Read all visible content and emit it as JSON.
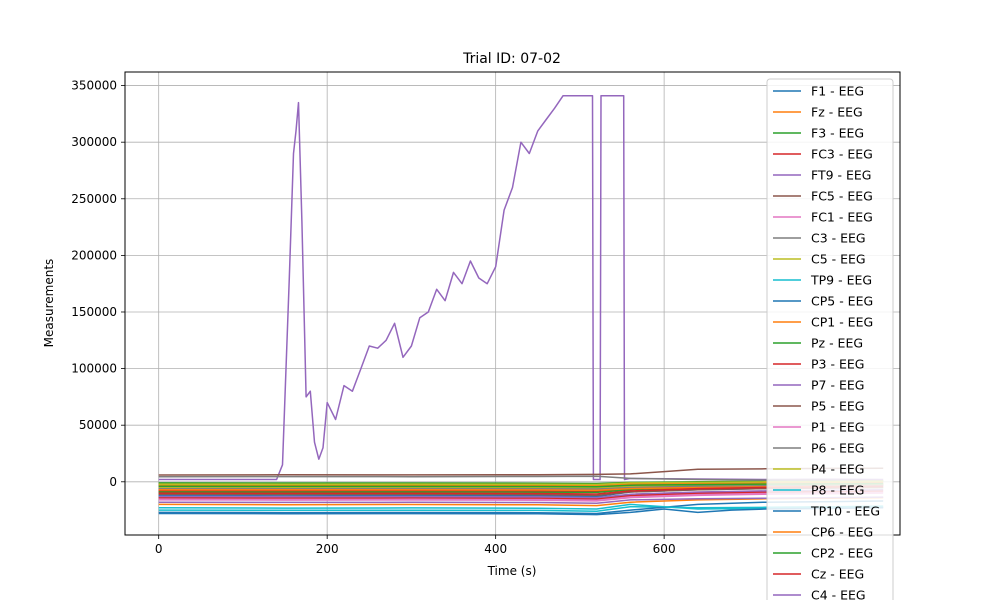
{
  "chart_data": {
    "type": "line",
    "title": "Trial ID: 07-02",
    "xlabel": "Time (s)",
    "ylabel": "Measurements",
    "xlim": [
      -40,
      880
    ],
    "ylim": [
      -47000,
      362000
    ],
    "x_ticks": [
      0,
      200,
      400,
      600
    ],
    "y_ticks": [
      0,
      50000,
      100000,
      150000,
      200000,
      250000,
      300000,
      350000
    ],
    "x_tick_labels": [
      "0",
      "200",
      "400",
      "600"
    ],
    "y_tick_labels": [
      "0",
      "50000",
      "100000",
      "150000",
      "200000",
      "250000",
      "300000",
      "350000"
    ],
    "grid": true,
    "legend_position": "right",
    "series": [
      {
        "name": "F1 - EEG",
        "color": "#1f77b4",
        "x": [
          0,
          150,
          300,
          450,
          520,
          560,
          640,
          720,
          800,
          860
        ],
        "values": [
          -12000,
          -12500,
          -12200,
          -12400,
          -13000,
          -9000,
          -7000,
          -6000,
          -5500,
          -5000
        ]
      },
      {
        "name": "Fz - EEG",
        "color": "#ff7f0e",
        "x": [
          0,
          150,
          300,
          450,
          520,
          560,
          640,
          720,
          800,
          860
        ],
        "values": [
          -3000,
          -3200,
          -3100,
          -3300,
          -3500,
          -2000,
          -1500,
          -1200,
          -1000,
          -900
        ]
      },
      {
        "name": "F3 - EEG",
        "color": "#2ca02c",
        "x": [
          0,
          150,
          300,
          450,
          520,
          560,
          640,
          720,
          800,
          860
        ],
        "values": [
          -1000,
          -1100,
          -1050,
          -1200,
          -1500,
          -500,
          0,
          500,
          800,
          1000
        ]
      },
      {
        "name": "FC3 - EEG",
        "color": "#d62728",
        "x": [
          0,
          150,
          300,
          450,
          520,
          560,
          640,
          720,
          800,
          860
        ],
        "values": [
          -8000,
          -8200,
          -8100,
          -8300,
          -8500,
          -6000,
          -4000,
          -3000,
          -2500,
          -2000
        ]
      },
      {
        "name": "FT9 - EEG",
        "color": "#9467bd",
        "x": [
          0,
          140,
          147,
          155,
          160,
          163,
          166,
          170,
          175,
          180,
          185,
          190,
          195,
          200,
          210,
          220,
          230,
          240,
          250,
          260,
          270,
          280,
          290,
          300,
          310,
          320,
          330,
          340,
          350,
          360,
          370,
          380,
          390,
          400,
          410,
          420,
          430,
          440,
          450,
          460,
          470,
          480,
          500,
          515,
          516,
          524,
          525,
          530,
          552,
          553,
          560,
          640,
          720,
          800,
          860
        ],
        "values": [
          2000,
          2000,
          15000,
          180000,
          290000,
          310000,
          335000,
          230000,
          75000,
          80000,
          35000,
          20000,
          30000,
          70000,
          55000,
          85000,
          80000,
          100000,
          120000,
          118000,
          125000,
          140000,
          110000,
          120000,
          145000,
          150000,
          170000,
          160000,
          185000,
          175000,
          195000,
          180000,
          175000,
          190000,
          240000,
          260000,
          300000,
          290000,
          310000,
          320000,
          330000,
          341000,
          341000,
          341000,
          2000,
          2000,
          341000,
          341000,
          341000,
          2000,
          3000,
          2500,
          2000,
          2200,
          2000
        ]
      },
      {
        "name": "FC5 - EEG",
        "color": "#8c564b",
        "x": [
          0,
          150,
          300,
          450,
          520,
          560,
          600,
          640,
          720,
          800,
          860
        ],
        "values": [
          6000,
          6200,
          6100,
          6300,
          6500,
          7000,
          9000,
          11000,
          11500,
          11800,
          12000
        ]
      },
      {
        "name": "FC1 - EEG",
        "color": "#e377c2",
        "x": [
          0,
          150,
          300,
          450,
          520,
          560,
          640,
          720,
          800,
          860
        ],
        "values": [
          -15000,
          -15200,
          -15100,
          -15300,
          -16000,
          -13000,
          -11000,
          -10000,
          -9500,
          -9000
        ]
      },
      {
        "name": "C3 - EEG",
        "color": "#7f7f7f",
        "x": [
          0,
          150,
          300,
          450,
          520,
          560,
          640,
          720,
          800,
          860
        ],
        "values": [
          4500,
          4600,
          4500,
          4700,
          4900,
          3000,
          2000,
          1500,
          1200,
          1000
        ]
      },
      {
        "name": "C5 - EEG",
        "color": "#bcbd22",
        "x": [
          0,
          150,
          300,
          450,
          520,
          560,
          640,
          720,
          800,
          860
        ],
        "values": [
          -5000,
          -5100,
          -5050,
          -5200,
          -5400,
          -4000,
          -3000,
          -2500,
          -2200,
          -2000
        ]
      },
      {
        "name": "TP9 - EEG",
        "color": "#17becf",
        "x": [
          0,
          150,
          300,
          450,
          520,
          560,
          640,
          720,
          800,
          860
        ],
        "values": [
          -25000,
          -25200,
          -25100,
          -25300,
          -26000,
          -22000,
          -23000,
          -22500,
          -22000,
          -21500
        ]
      },
      {
        "name": "CP5 - EEG",
        "color": "#1f77b4",
        "x": [
          0,
          150,
          300,
          450,
          520,
          560,
          640,
          720,
          800,
          860
        ],
        "values": [
          -27000,
          -27200,
          -27100,
          -27300,
          -28000,
          -25000,
          -20000,
          -18000,
          -17500,
          -17000
        ]
      },
      {
        "name": "CP1 - EEG",
        "color": "#ff7f0e",
        "x": [
          0,
          150,
          300,
          450,
          520,
          560,
          640,
          720,
          800,
          860
        ],
        "values": [
          -20000,
          -20200,
          -20100,
          -20300,
          -21000,
          -18000,
          -16000,
          -15000,
          -14500,
          -14000
        ]
      },
      {
        "name": "Pz - EEG",
        "color": "#2ca02c",
        "x": [
          0,
          150,
          300,
          450,
          520,
          560,
          640,
          720,
          800,
          860
        ],
        "values": [
          -9000,
          -9100,
          -9050,
          -9200,
          -9400,
          -7000,
          -5000,
          -4000,
          -3500,
          -3000
        ]
      },
      {
        "name": "P3 - EEG",
        "color": "#d62728",
        "x": [
          0,
          150,
          300,
          450,
          520,
          560,
          640,
          720,
          800,
          860
        ],
        "values": [
          -14000,
          -14200,
          -14100,
          -14300,
          -15000,
          -12000,
          -10000,
          -9000,
          -8500,
          -8000
        ]
      },
      {
        "name": "P7 - EEG",
        "color": "#9467bd",
        "x": [
          0,
          150,
          300,
          450,
          520,
          560,
          640,
          720,
          800,
          860
        ],
        "values": [
          -18000,
          -18200,
          -18100,
          -18300,
          -19000,
          -16000,
          -15000,
          -14500,
          -14000,
          -13500
        ]
      },
      {
        "name": "P5 - EEG",
        "color": "#8c564b",
        "x": [
          0,
          150,
          300,
          450,
          520,
          560,
          640,
          720,
          800,
          860
        ],
        "values": [
          -11000,
          -11200,
          -11100,
          -11300,
          -12000,
          -9000,
          -7000,
          -6000,
          -5500,
          -5000
        ]
      },
      {
        "name": "P1 - EEG",
        "color": "#e377c2",
        "x": [
          0,
          150,
          300,
          450,
          520,
          560,
          640,
          720,
          800,
          860
        ],
        "values": [
          -16000,
          -16200,
          -16100,
          -16300,
          -17000,
          -14000,
          -12000,
          -11000,
          -10500,
          -10000
        ]
      },
      {
        "name": "P6 - EEG",
        "color": "#7f7f7f",
        "x": [
          0,
          150,
          300,
          450,
          520,
          560,
          640,
          720,
          800,
          860
        ],
        "values": [
          -6000,
          -6100,
          -6050,
          -6200,
          -6400,
          -5000,
          -4000,
          -3500,
          -3200,
          -3000
        ]
      },
      {
        "name": "P4 - EEG",
        "color": "#bcbd22",
        "x": [
          0,
          150,
          300,
          450,
          520,
          560,
          640,
          720,
          800,
          860
        ],
        "values": [
          -2000,
          -2100,
          -2050,
          -2200,
          -2400,
          -1000,
          -500,
          0,
          200,
          400
        ]
      },
      {
        "name": "P8 - EEG",
        "color": "#17becf",
        "x": [
          0,
          150,
          300,
          450,
          520,
          560,
          640,
          720,
          800,
          860
        ],
        "values": [
          -23000,
          -23200,
          -23100,
          -23300,
          -24000,
          -20000,
          -24000,
          -23500,
          -23000,
          -22500
        ]
      },
      {
        "name": "TP10 - EEG",
        "color": "#1f77b4",
        "x": [
          0,
          150,
          300,
          450,
          520,
          560,
          600,
          640,
          680,
          720,
          800,
          860
        ],
        "values": [
          -28000,
          -28200,
          -28100,
          -28300,
          -29000,
          -27000,
          -24000,
          -27000,
          -25000,
          -24000,
          -23500,
          -23000
        ]
      },
      {
        "name": "CP6 - EEG",
        "color": "#ff7f0e",
        "x": [
          0,
          150,
          300,
          450,
          520,
          560,
          640,
          720,
          800,
          860
        ],
        "values": [
          -7000,
          -7100,
          -7050,
          -7200,
          -7500,
          -6000,
          -5000,
          -4500,
          -4200,
          -4000
        ]
      },
      {
        "name": "CP2 - EEG",
        "color": "#2ca02c",
        "x": [
          0,
          150,
          300,
          450,
          520,
          560,
          640,
          720,
          800,
          860
        ],
        "values": [
          -4000,
          -4100,
          -4050,
          -4200,
          -4400,
          -3000,
          -2500,
          -2000,
          -1800,
          -1500
        ]
      },
      {
        "name": "Cz - EEG",
        "color": "#d62728",
        "x": [
          0,
          150,
          300,
          450,
          520,
          560,
          640,
          720,
          800,
          860
        ],
        "values": [
          -10000,
          -10200,
          -10100,
          -10300,
          -10800,
          -8000,
          -6000,
          -5000,
          -4500,
          -4000
        ]
      },
      {
        "name": "C4 - EEG",
        "color": "#9467bd",
        "x": [
          0,
          150,
          300,
          450,
          520,
          560,
          640,
          720,
          800,
          860
        ],
        "values": [
          -13000,
          -13200,
          -13100,
          -13300,
          -14000,
          -11000,
          -9000,
          -8000,
          -7500,
          -7000
        ]
      }
    ]
  }
}
